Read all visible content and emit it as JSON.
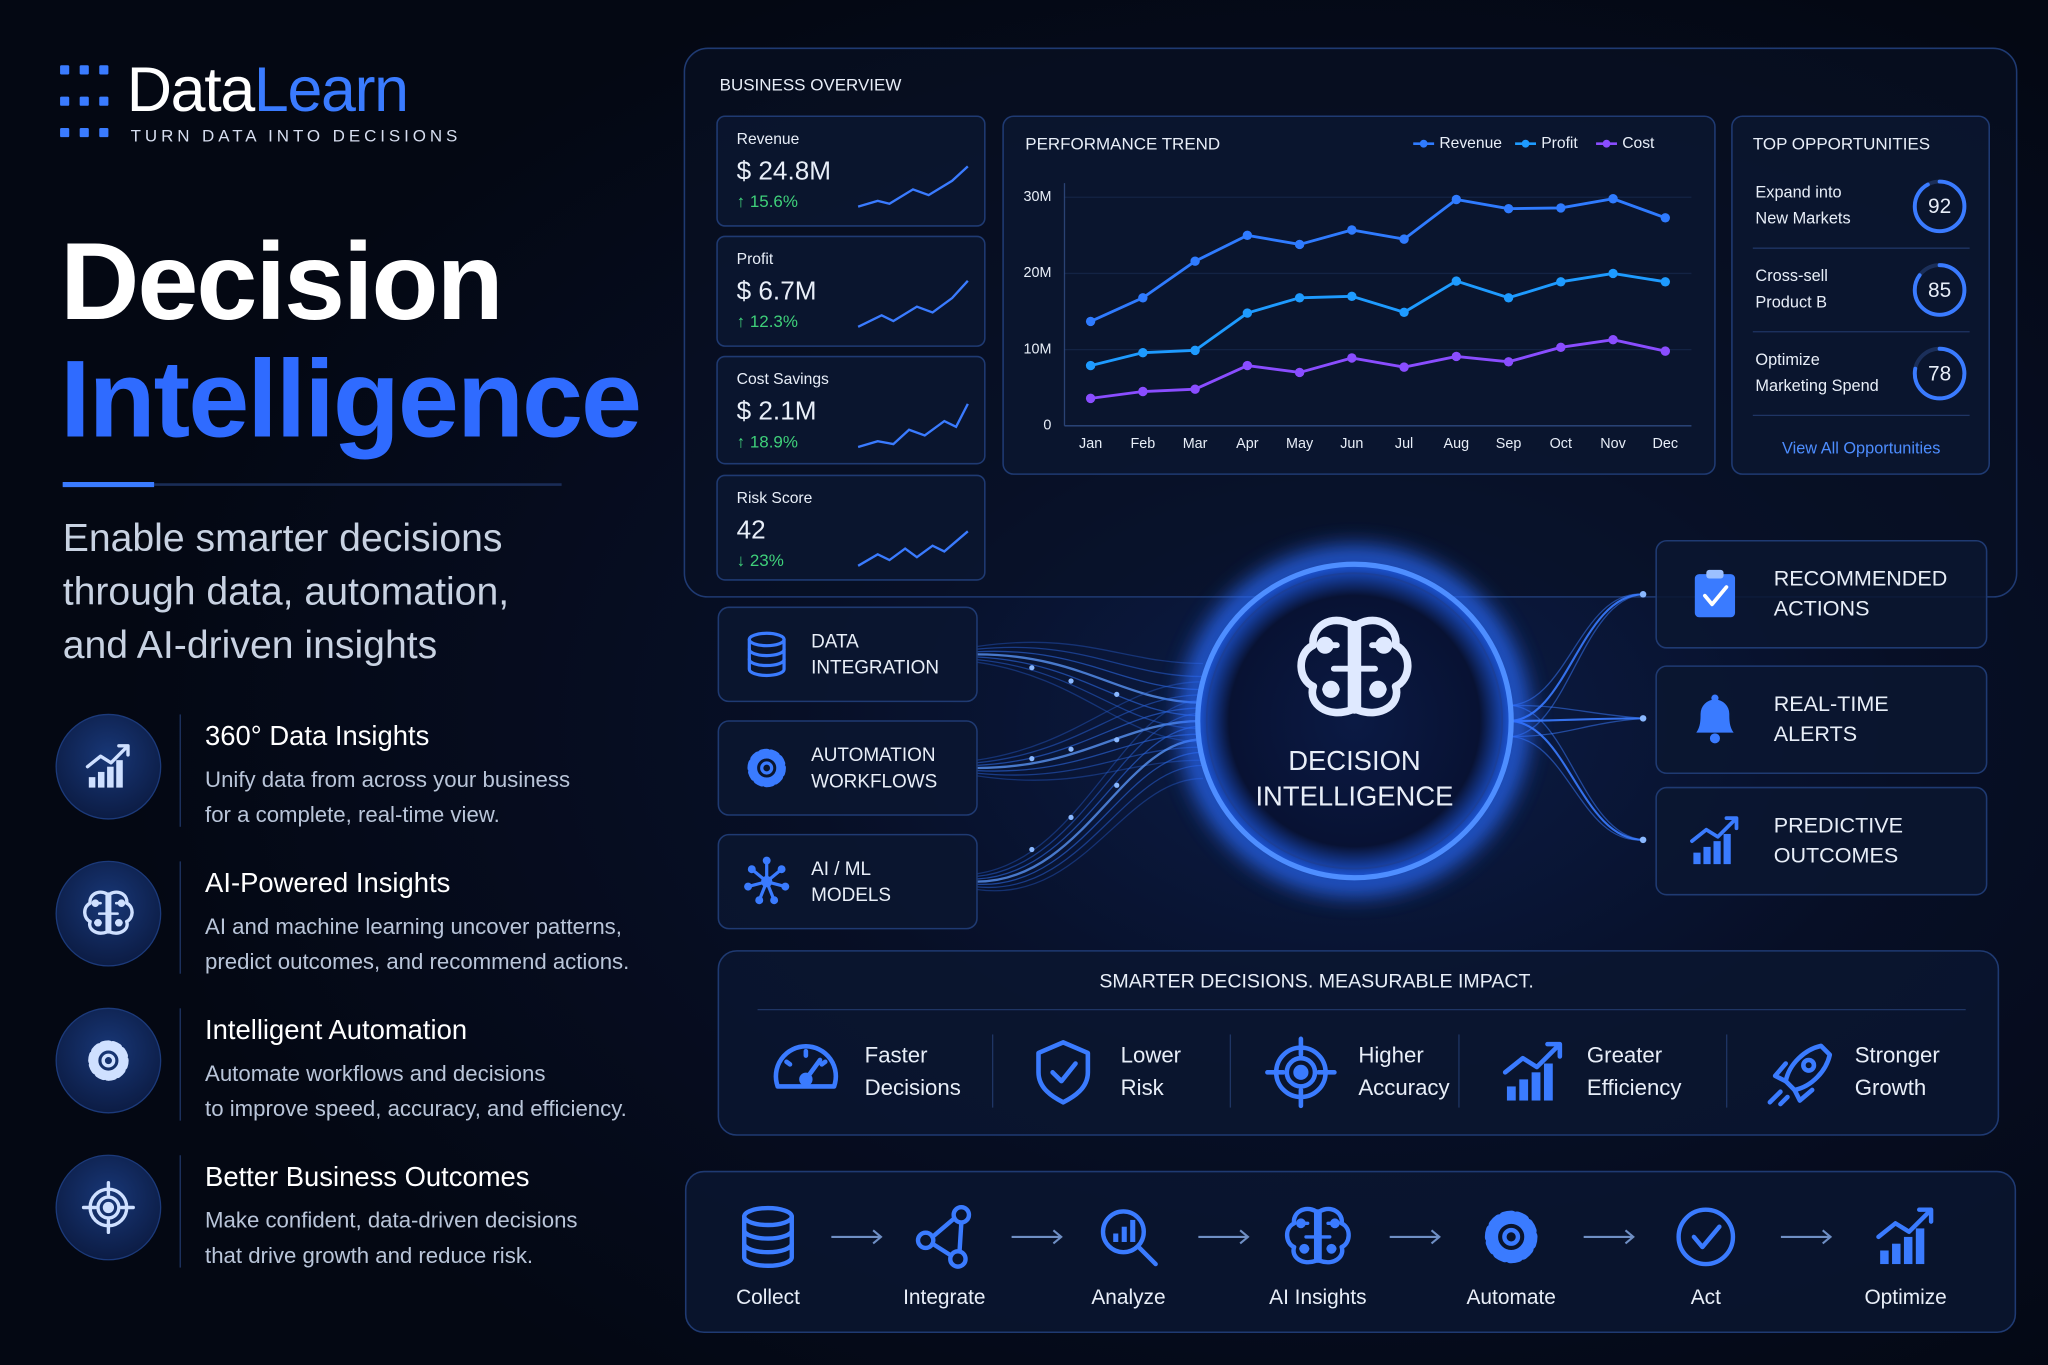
{
  "brand": {
    "name_a": "Data",
    "name_b": "Learn",
    "tagline": "TURN DATA INTO DECISIONS"
  },
  "hero": {
    "title_1": "Decision",
    "title_2": "Intelligence",
    "subtitle": [
      "Enable smarter decisions",
      "through data, automation,",
      "and AI-driven insights"
    ]
  },
  "features": [
    {
      "title": "360° Data Insights",
      "text": [
        "Unify data from across your business",
        "for a complete, real-time view."
      ]
    },
    {
      "title": "AI-Powered Insights",
      "text": [
        "AI and machine learning uncover patterns,",
        "predict outcomes, and recommend actions."
      ]
    },
    {
      "title": "Intelligent Automation",
      "text": [
        "Automate workflows and decisions",
        "to improve speed, accuracy, and efficiency."
      ]
    },
    {
      "title": "Better Business Outcomes",
      "text": [
        "Make confident, data-driven decisions",
        "that drive growth and reduce risk."
      ]
    }
  ],
  "overview": {
    "title": "BUSINESS OVERVIEW",
    "kpis": [
      {
        "label": "Revenue",
        "value": "$ 24.8M",
        "change": "↑ 15.6%"
      },
      {
        "label": "Profit",
        "value": "$ 6.7M",
        "change": "↑ 12.3%"
      },
      {
        "label": "Cost Savings",
        "value": "$ 2.1M",
        "change": "↑ 18.9%"
      },
      {
        "label": "Risk Score",
        "value": "42",
        "change": "↓ 23%"
      }
    ]
  },
  "chart_data": {
    "type": "line",
    "title": "PERFORMANCE TREND",
    "categories": [
      "Jan",
      "Feb",
      "Mar",
      "Apr",
      "May",
      "Jun",
      "Jul",
      "Aug",
      "Sep",
      "Oct",
      "Nov",
      "Dec"
    ],
    "series": [
      {
        "name": "Revenue",
        "color": "#2f7bff",
        "values": [
          13.7,
          16.8,
          21.6,
          25,
          23.8,
          25.7,
          24.5,
          29.7,
          28.5,
          28.6,
          29.8,
          27.3
        ]
      },
      {
        "name": "Profit",
        "color": "#1e9bff",
        "values": [
          7.9,
          9.6,
          9.9,
          14.8,
          16.8,
          17,
          14.9,
          19,
          16.8,
          18.9,
          20,
          18.9
        ]
      },
      {
        "name": "Cost",
        "color": "#8a4dff",
        "values": [
          3.6,
          4.5,
          4.8,
          7.9,
          7,
          8.9,
          7.7,
          9.1,
          8.4,
          10.3,
          11.3,
          9.8
        ]
      }
    ],
    "ylim": [
      0,
      31
    ],
    "yticks": [
      0,
      {
        "value": 10,
        "label": "10M"
      },
      {
        "value": 20,
        "label": "20M"
      },
      {
        "value": 30,
        "label": "30M"
      }
    ],
    "grid": true,
    "legend": "top-right"
  },
  "opportunities": {
    "title": "TOP OPPORTUNITIES",
    "items": [
      {
        "label": [
          "Expand into",
          "New Markets"
        ],
        "score": 92
      },
      {
        "label": [
          "Cross-sell",
          "Product B"
        ],
        "score": 85
      },
      {
        "label": [
          "Optimize",
          "Marketing Spend"
        ],
        "score": 78
      }
    ],
    "link": "View All Opportunities"
  },
  "inputs": [
    [
      "DATA",
      "INTEGRATION"
    ],
    [
      "AUTOMATION",
      "WORKFLOWS"
    ],
    [
      "AI / ML",
      "MODELS"
    ]
  ],
  "hub": [
    "DECISION",
    "INTELLIGENCE"
  ],
  "outputs": [
    [
      "RECOMMENDED",
      "ACTIONS"
    ],
    [
      "REAL-TIME",
      "ALERTS"
    ],
    [
      "PREDICTIVE",
      "OUTCOMES"
    ]
  ],
  "impact": {
    "title": "SMARTER DECISIONS. MEASURABLE IMPACT.",
    "items": [
      [
        "Faster",
        "Decisions"
      ],
      [
        "Lower",
        "Risk"
      ],
      [
        "Higher",
        "Accuracy"
      ],
      [
        "Greater",
        "Efficiency"
      ],
      [
        "Stronger",
        "Growth"
      ]
    ]
  },
  "process": [
    "Collect",
    "Integrate",
    "Analyze",
    "AI Insights",
    "Automate",
    "Act",
    "Optimize"
  ]
}
